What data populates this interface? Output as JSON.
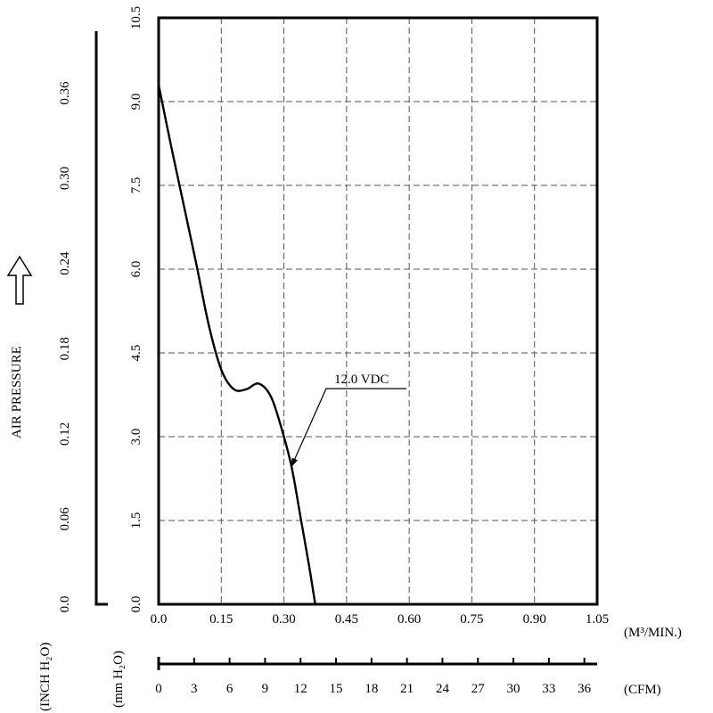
{
  "chart_data": {
    "type": "line",
    "series": [
      {
        "name": "12.0 VDC",
        "x": [
          0.0,
          0.03,
          0.06,
          0.09,
          0.12,
          0.15,
          0.18,
          0.21,
          0.24,
          0.27,
          0.3,
          0.32,
          0.34,
          0.36,
          0.375
        ],
        "y": [
          9.3,
          8.2,
          7.15,
          6.1,
          5.0,
          4.2,
          3.85,
          3.85,
          3.95,
          3.7,
          3.0,
          2.4,
          1.55,
          0.7,
          0.0
        ]
      }
    ],
    "x_axis": {
      "unit_label": "(M³/MIN.)",
      "range": [
        0.0,
        1.05
      ],
      "ticks": [
        "0.0",
        "0.15",
        "0.30",
        "0.45",
        "0.60",
        "0.75",
        "0.90",
        "1.05"
      ]
    },
    "x2_axis": {
      "unit_label": "(CFM)",
      "range": [
        0,
        37.08
      ],
      "ticks": [
        "0",
        "3",
        "6",
        "9",
        "12",
        "15",
        "18",
        "21",
        "24",
        "27",
        "30",
        "33",
        "36"
      ]
    },
    "y_axis": {
      "unit_label": "(mm H₂O)",
      "range": [
        0.0,
        10.5
      ],
      "ticks": [
        "0.0",
        "1.5",
        "3.0",
        "4.5",
        "6.0",
        "7.5",
        "9.0",
        "10.5"
      ]
    },
    "y2_axis": {
      "unit_label": "(INCH H₂O)",
      "range": [
        0.0,
        0.413
      ],
      "ticks": [
        "0.0",
        "0.06",
        "0.12",
        "0.18",
        "0.24",
        "0.30",
        "0.36"
      ]
    },
    "ylabel": "AIR PRESSURE",
    "annotation": "12.0 VDC",
    "grid": true
  }
}
